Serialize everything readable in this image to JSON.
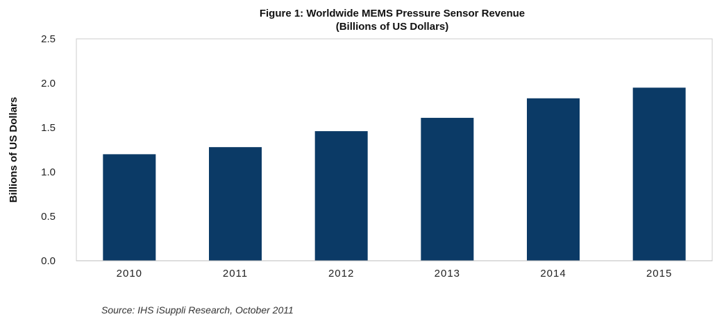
{
  "chart_data": {
    "type": "bar",
    "title": "Figure 1: Worldwide MEMS Pressure Sensor Revenue",
    "subtitle": "(Billions of US Dollars)",
    "xlabel": "",
    "ylabel": "Billions of US Dollars",
    "categories": [
      "2010",
      "2011",
      "2012",
      "2013",
      "2014",
      "2015"
    ],
    "values": [
      1.2,
      1.28,
      1.46,
      1.61,
      1.83,
      1.95
    ],
    "ylim": [
      0,
      2.5
    ],
    "yticks": [
      "0.0",
      "0.5",
      "1.0",
      "1.5",
      "2.0",
      "2.5"
    ],
    "grid": false,
    "bar_color": "#0b3a66",
    "source": "Source: IHS iSuppli Research, October 2011"
  }
}
